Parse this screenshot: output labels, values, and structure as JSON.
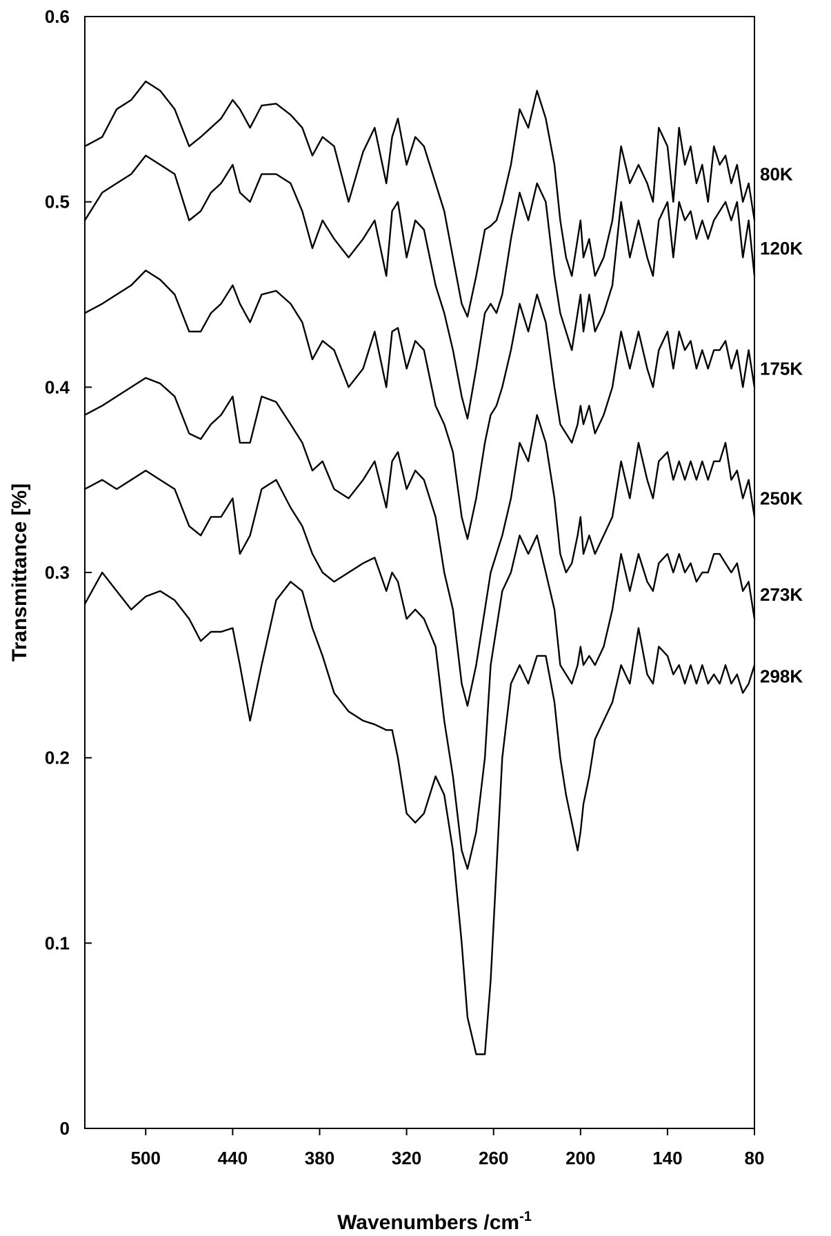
{
  "chart_data": {
    "type": "line",
    "title": "",
    "xlabel": "Wavenumbers /cm",
    "xlabel_sup": "-1",
    "ylabel": "Transmittance [%]",
    "xlim": [
      542,
      80
    ],
    "ylim": [
      0,
      0.6
    ],
    "x_reversed": true,
    "grid": false,
    "xticks": [
      500,
      440,
      380,
      320,
      260,
      200,
      140,
      80
    ],
    "yticks": [
      0,
      0.1,
      0.2,
      0.3,
      0.4,
      0.5,
      0.6
    ],
    "ytick_labels": [
      "0",
      "0.1",
      "0.2",
      "0.3",
      "0.4",
      "0.5",
      "0.6"
    ],
    "series": [
      {
        "name": "80K",
        "label_y": 0.515,
        "x": [
          542,
          530,
          520,
          510,
          500,
          490,
          480,
          470,
          462,
          455,
          448,
          440,
          435,
          428,
          420,
          410,
          400,
          392,
          385,
          378,
          370,
          360,
          350,
          342,
          334,
          330,
          326,
          320,
          314,
          308,
          300,
          294,
          288,
          282,
          278,
          272,
          266,
          262,
          258,
          254,
          248,
          242,
          236,
          230,
          224,
          218,
          214,
          210,
          206,
          202,
          200,
          198,
          194,
          190,
          184,
          178,
          172,
          166,
          160,
          154,
          150,
          146,
          140,
          136,
          132,
          128,
          124,
          120,
          116,
          112,
          108,
          104,
          100,
          96,
          92,
          88,
          84,
          80
        ],
        "values": [
          0.53,
          0.535,
          0.55,
          0.555,
          0.565,
          0.56,
          0.55,
          0.53,
          0.535,
          0.54,
          0.545,
          0.555,
          0.55,
          0.54,
          0.552,
          0.553,
          0.547,
          0.54,
          0.525,
          0.535,
          0.53,
          0.5,
          0.527,
          0.54,
          0.51,
          0.535,
          0.545,
          0.52,
          0.535,
          0.53,
          0.51,
          0.495,
          0.47,
          0.445,
          0.438,
          0.46,
          0.485,
          0.487,
          0.49,
          0.5,
          0.52,
          0.55,
          0.54,
          0.56,
          0.545,
          0.52,
          0.49,
          0.47,
          0.46,
          0.48,
          0.49,
          0.47,
          0.48,
          0.46,
          0.47,
          0.49,
          0.53,
          0.51,
          0.52,
          0.51,
          0.5,
          0.54,
          0.53,
          0.5,
          0.54,
          0.52,
          0.53,
          0.51,
          0.52,
          0.5,
          0.53,
          0.52,
          0.525,
          0.51,
          0.52,
          0.5,
          0.51,
          0.49
        ]
      },
      {
        "name": "120K",
        "label_y": 0.475,
        "x": [
          542,
          530,
          520,
          510,
          500,
          490,
          480,
          470,
          462,
          455,
          448,
          440,
          435,
          428,
          420,
          410,
          400,
          392,
          385,
          378,
          370,
          360,
          350,
          342,
          334,
          330,
          326,
          320,
          314,
          308,
          300,
          294,
          288,
          282,
          278,
          272,
          266,
          262,
          258,
          254,
          248,
          242,
          236,
          230,
          224,
          218,
          214,
          210,
          206,
          202,
          200,
          198,
          194,
          190,
          184,
          178,
          172,
          166,
          160,
          154,
          150,
          146,
          140,
          136,
          132,
          128,
          124,
          120,
          116,
          112,
          108,
          104,
          100,
          96,
          92,
          88,
          84,
          80
        ],
        "values": [
          0.49,
          0.505,
          0.51,
          0.515,
          0.525,
          0.52,
          0.515,
          0.49,
          0.495,
          0.505,
          0.51,
          0.52,
          0.505,
          0.5,
          0.515,
          0.515,
          0.51,
          0.495,
          0.475,
          0.49,
          0.48,
          0.47,
          0.48,
          0.49,
          0.46,
          0.495,
          0.5,
          0.47,
          0.49,
          0.485,
          0.455,
          0.44,
          0.42,
          0.395,
          0.383,
          0.41,
          0.44,
          0.445,
          0.44,
          0.45,
          0.48,
          0.505,
          0.49,
          0.51,
          0.5,
          0.46,
          0.44,
          0.43,
          0.42,
          0.44,
          0.45,
          0.43,
          0.45,
          0.43,
          0.44,
          0.455,
          0.5,
          0.47,
          0.49,
          0.47,
          0.46,
          0.49,
          0.5,
          0.47,
          0.5,
          0.49,
          0.495,
          0.48,
          0.49,
          0.48,
          0.49,
          0.495,
          0.5,
          0.49,
          0.5,
          0.47,
          0.49,
          0.46
        ]
      },
      {
        "name": "175K",
        "label_y": 0.41,
        "x": [
          542,
          530,
          520,
          510,
          500,
          490,
          480,
          470,
          462,
          455,
          448,
          440,
          435,
          428,
          420,
          410,
          400,
          392,
          385,
          378,
          370,
          360,
          350,
          342,
          334,
          330,
          326,
          320,
          314,
          308,
          300,
          294,
          288,
          282,
          278,
          272,
          266,
          262,
          258,
          254,
          248,
          242,
          236,
          230,
          224,
          218,
          214,
          210,
          206,
          202,
          200,
          198,
          194,
          190,
          184,
          178,
          172,
          166,
          160,
          154,
          150,
          146,
          140,
          136,
          132,
          128,
          124,
          120,
          116,
          112,
          108,
          104,
          100,
          96,
          92,
          88,
          84,
          80
        ],
        "values": [
          0.44,
          0.445,
          0.45,
          0.455,
          0.463,
          0.458,
          0.45,
          0.43,
          0.43,
          0.44,
          0.445,
          0.455,
          0.445,
          0.435,
          0.45,
          0.452,
          0.445,
          0.435,
          0.415,
          0.425,
          0.42,
          0.4,
          0.41,
          0.43,
          0.4,
          0.43,
          0.432,
          0.41,
          0.425,
          0.42,
          0.39,
          0.38,
          0.365,
          0.33,
          0.318,
          0.34,
          0.37,
          0.385,
          0.39,
          0.4,
          0.42,
          0.445,
          0.43,
          0.45,
          0.435,
          0.4,
          0.38,
          0.375,
          0.37,
          0.38,
          0.39,
          0.38,
          0.39,
          0.375,
          0.385,
          0.4,
          0.43,
          0.41,
          0.43,
          0.41,
          0.4,
          0.42,
          0.43,
          0.41,
          0.43,
          0.42,
          0.425,
          0.41,
          0.42,
          0.41,
          0.42,
          0.42,
          0.425,
          0.41,
          0.42,
          0.4,
          0.42,
          0.4
        ]
      },
      {
        "name": "250K",
        "label_y": 0.34,
        "x": [
          542,
          530,
          520,
          510,
          500,
          490,
          480,
          470,
          462,
          455,
          448,
          440,
          435,
          428,
          420,
          410,
          400,
          392,
          385,
          378,
          370,
          360,
          350,
          342,
          334,
          330,
          326,
          320,
          314,
          308,
          300,
          294,
          288,
          282,
          278,
          272,
          266,
          262,
          258,
          254,
          248,
          242,
          236,
          230,
          224,
          218,
          214,
          210,
          206,
          202,
          200,
          198,
          194,
          190,
          184,
          178,
          172,
          166,
          160,
          154,
          150,
          146,
          140,
          136,
          132,
          128,
          124,
          120,
          116,
          112,
          108,
          104,
          100,
          96,
          92,
          88,
          84,
          80
        ],
        "values": [
          0.385,
          0.39,
          0.395,
          0.4,
          0.405,
          0.402,
          0.395,
          0.375,
          0.372,
          0.38,
          0.385,
          0.395,
          0.37,
          0.37,
          0.395,
          0.392,
          0.38,
          0.37,
          0.355,
          0.36,
          0.345,
          0.34,
          0.35,
          0.36,
          0.335,
          0.36,
          0.365,
          0.345,
          0.355,
          0.35,
          0.33,
          0.3,
          0.28,
          0.24,
          0.228,
          0.25,
          0.28,
          0.3,
          0.31,
          0.32,
          0.34,
          0.37,
          0.36,
          0.385,
          0.37,
          0.34,
          0.31,
          0.3,
          0.305,
          0.32,
          0.33,
          0.31,
          0.32,
          0.31,
          0.32,
          0.33,
          0.36,
          0.34,
          0.37,
          0.35,
          0.34,
          0.36,
          0.365,
          0.35,
          0.36,
          0.35,
          0.36,
          0.35,
          0.36,
          0.35,
          0.36,
          0.36,
          0.37,
          0.35,
          0.355,
          0.34,
          0.35,
          0.33
        ]
      },
      {
        "name": "273K",
        "label_y": 0.288,
        "x": [
          542,
          530,
          520,
          510,
          500,
          490,
          480,
          470,
          462,
          455,
          448,
          440,
          435,
          428,
          420,
          410,
          400,
          392,
          385,
          378,
          370,
          360,
          350,
          342,
          334,
          330,
          326,
          320,
          314,
          308,
          300,
          294,
          288,
          282,
          278,
          272,
          266,
          262,
          258,
          254,
          248,
          242,
          236,
          230,
          224,
          218,
          214,
          210,
          206,
          202,
          200,
          198,
          194,
          190,
          184,
          178,
          172,
          166,
          160,
          154,
          150,
          146,
          140,
          136,
          132,
          128,
          124,
          120,
          116,
          112,
          108,
          104,
          100,
          96,
          92,
          88,
          84,
          80
        ],
        "values": [
          0.345,
          0.35,
          0.345,
          0.35,
          0.355,
          0.35,
          0.345,
          0.325,
          0.32,
          0.33,
          0.33,
          0.34,
          0.31,
          0.32,
          0.345,
          0.35,
          0.335,
          0.325,
          0.31,
          0.3,
          0.295,
          0.3,
          0.305,
          0.308,
          0.29,
          0.3,
          0.295,
          0.275,
          0.28,
          0.275,
          0.26,
          0.22,
          0.19,
          0.15,
          0.14,
          0.16,
          0.2,
          0.25,
          0.27,
          0.29,
          0.3,
          0.32,
          0.31,
          0.32,
          0.3,
          0.28,
          0.25,
          0.245,
          0.24,
          0.25,
          0.26,
          0.25,
          0.255,
          0.25,
          0.26,
          0.28,
          0.31,
          0.29,
          0.31,
          0.295,
          0.29,
          0.305,
          0.31,
          0.3,
          0.31,
          0.3,
          0.305,
          0.295,
          0.3,
          0.3,
          0.31,
          0.31,
          0.305,
          0.3,
          0.305,
          0.29,
          0.295,
          0.275
        ]
      },
      {
        "name": "298K",
        "label_y": 0.244,
        "x": [
          542,
          530,
          520,
          510,
          500,
          490,
          480,
          470,
          462,
          455,
          448,
          440,
          435,
          428,
          420,
          410,
          400,
          392,
          385,
          378,
          370,
          360,
          350,
          342,
          334,
          330,
          326,
          320,
          314,
          308,
          300,
          294,
          288,
          282,
          278,
          272,
          266,
          262,
          258,
          254,
          248,
          242,
          236,
          230,
          224,
          218,
          214,
          210,
          206,
          202,
          200,
          198,
          194,
          190,
          184,
          178,
          172,
          166,
          160,
          154,
          150,
          146,
          140,
          136,
          132,
          128,
          124,
          120,
          116,
          112,
          108,
          104,
          100,
          96,
          92,
          88,
          84,
          80
        ],
        "values": [
          0.283,
          0.3,
          0.29,
          0.28,
          0.287,
          0.29,
          0.285,
          0.275,
          0.263,
          0.268,
          0.268,
          0.27,
          0.25,
          0.22,
          0.25,
          0.285,
          0.295,
          0.29,
          0.27,
          0.255,
          0.235,
          0.225,
          0.22,
          0.218,
          0.215,
          0.215,
          0.2,
          0.17,
          0.165,
          0.17,
          0.19,
          0.18,
          0.15,
          0.1,
          0.06,
          0.04,
          0.04,
          0.08,
          0.14,
          0.2,
          0.24,
          0.25,
          0.24,
          0.255,
          0.255,
          0.23,
          0.2,
          0.18,
          0.165,
          0.15,
          0.16,
          0.175,
          0.19,
          0.21,
          0.22,
          0.23,
          0.25,
          0.24,
          0.27,
          0.245,
          0.24,
          0.26,
          0.255,
          0.245,
          0.25,
          0.24,
          0.25,
          0.24,
          0.25,
          0.24,
          0.245,
          0.24,
          0.25,
          0.24,
          0.245,
          0.235,
          0.24,
          0.25
        ]
      }
    ]
  }
}
